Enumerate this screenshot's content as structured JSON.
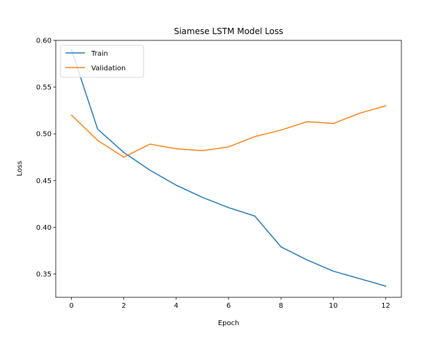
{
  "chart_data": {
    "type": "line",
    "title": "Siamese LSTM Model Loss",
    "xlabel": "Epoch",
    "ylabel": "Loss",
    "x": [
      0,
      1,
      2,
      3,
      4,
      5,
      6,
      7,
      8,
      9,
      10,
      11,
      12
    ],
    "xlim": [
      -0.6,
      12.6
    ],
    "ylim": [
      0.325,
      0.6
    ],
    "xticks": [
      0,
      2,
      4,
      6,
      8,
      10,
      12
    ],
    "yticks": [
      0.35,
      0.4,
      0.45,
      0.5,
      0.55,
      0.6
    ],
    "xtick_labels": [
      "0",
      "2",
      "4",
      "6",
      "8",
      "10",
      "12"
    ],
    "ytick_labels": [
      "0.35",
      "0.40",
      "0.45",
      "0.50",
      "0.55",
      "0.60"
    ],
    "grid": false,
    "legend_position": "upper-left",
    "series": [
      {
        "name": "Train",
        "color": "#1f77b4",
        "values": [
          0.59,
          0.505,
          0.48,
          0.461,
          0.445,
          0.432,
          0.421,
          0.412,
          0.379,
          0.365,
          0.353,
          0.345,
          0.337
        ]
      },
      {
        "name": "Validation",
        "color": "#ff7f0e",
        "values": [
          0.52,
          0.493,
          0.475,
          0.489,
          0.484,
          0.482,
          0.486,
          0.497,
          0.504,
          0.513,
          0.511,
          0.522,
          0.53
        ]
      }
    ]
  }
}
